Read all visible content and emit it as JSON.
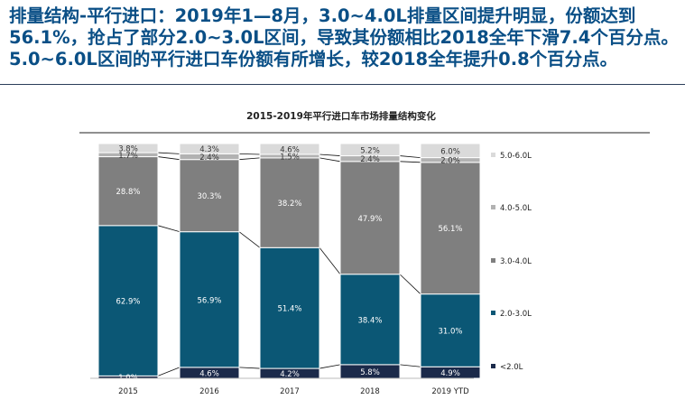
{
  "headline": "排量结构-平行进口：2019年1—8月，3.0~4.0L排量区间提升明显，份额达到56.1%，抢占了部分2.0~3.0L区间，导致其份额相比2018全年下滑7.4个百分点。5.0~6.0L区间的平行进口车份额有所增长，较2018全年提升0.8个百分点。",
  "chart_data": {
    "type": "bar",
    "stacked": true,
    "percent_stacked": true,
    "title": "2015-2019年平行进口车市场排量结构变化",
    "categories": [
      "2015",
      "2016",
      "2017",
      "2018",
      "2019 YTD"
    ],
    "series": [
      {
        "name": "<2.0L",
        "color": "#1b2a4a",
        "label_color": "#ffffff",
        "values": [
          1.0,
          4.6,
          4.2,
          5.8,
          4.9
        ]
      },
      {
        "name": "2.0-3.0L",
        "color": "#0b5775",
        "label_color": "#ffffff",
        "values": [
          62.9,
          56.9,
          51.4,
          38.4,
          31.0
        ]
      },
      {
        "name": "3.0-4.0L",
        "color": "#7f7f7f",
        "label_color": "#ffffff",
        "values": [
          28.8,
          30.3,
          38.2,
          47.9,
          56.1
        ]
      },
      {
        "name": "4.0-5.0L",
        "color": "#b2b2b2",
        "label_color": "#333333",
        "values": [
          1.7,
          2.4,
          1.5,
          2.4,
          2.0
        ]
      },
      {
        "name": "5.0-6.0L",
        "color": "#dadada",
        "label_color": "#333333",
        "values": [
          3.8,
          4.3,
          4.6,
          5.2,
          6.0
        ]
      }
    ],
    "legend_order": [
      "5.0-6.0L",
      "4.0-5.0L",
      "3.0-4.0L",
      "2.0-3.0L",
      "<2.0L"
    ],
    "legend_position": "right",
    "connector_lines": true,
    "value_suffix": "%",
    "ylim": [
      0,
      100
    ],
    "grid": false
  }
}
